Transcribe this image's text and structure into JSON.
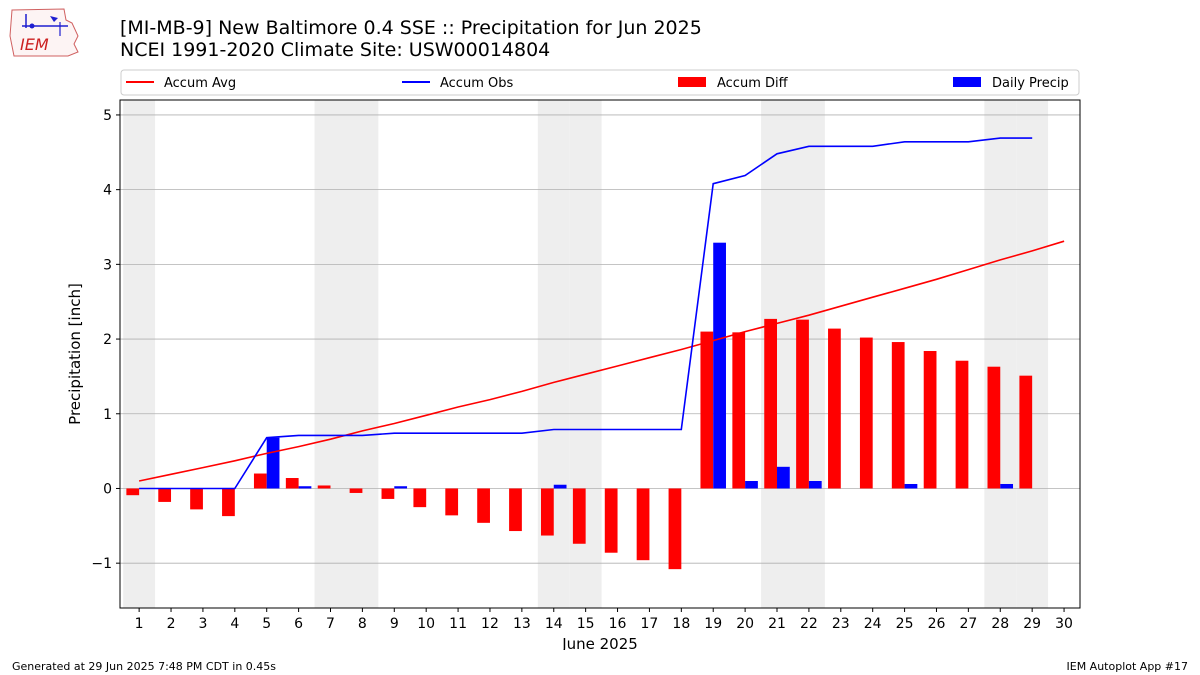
{
  "logo": {
    "text": "IEM"
  },
  "header": {
    "title": "[MI-MB-9] New Baltimore 0.4 SSE :: Precipitation for Jun 2025",
    "subtitle": "NCEI 1991-2020 Climate Site: USW00014804"
  },
  "footer": {
    "left": "Generated at 29 Jun 2025 7:48 PM CDT in 0.45s",
    "right": "IEM Autoplot App #17"
  },
  "colors": {
    "avg": "#ff0000",
    "obs": "#0000ff",
    "diff": "#ff0000",
    "daily": "#0000ff",
    "weekend": "#eeeeee",
    "grid": "#b0b0b0"
  },
  "chart_data": {
    "type": "bar",
    "xlabel": "June 2025",
    "ylabel": "Precipitation [inch]",
    "ylim": [
      -1.6,
      5.2
    ],
    "yticks": [
      -1,
      0,
      1,
      2,
      3,
      4,
      5
    ],
    "ytick_labels": [
      "−1",
      "0",
      "1",
      "2",
      "3",
      "4",
      "5"
    ],
    "grid": "horizontal",
    "days": [
      1,
      2,
      3,
      4,
      5,
      6,
      7,
      8,
      9,
      10,
      11,
      12,
      13,
      14,
      15,
      16,
      17,
      18,
      19,
      20,
      21,
      22,
      23,
      24,
      25,
      26,
      27,
      28,
      29,
      30
    ],
    "weekend_days": [
      1,
      7,
      8,
      14,
      15,
      21,
      22,
      28,
      29
    ],
    "legend": {
      "placement": "top, above plot",
      "entries": [
        "Accum Avg",
        "Accum Obs",
        "Accum Diff",
        "Daily Precip"
      ]
    },
    "series": [
      {
        "name": "Accum Avg",
        "kind": "line",
        "values": [
          0.1,
          0.19,
          0.28,
          0.37,
          0.47,
          0.56,
          0.66,
          0.77,
          0.87,
          0.98,
          1.09,
          1.19,
          1.3,
          1.42,
          1.53,
          1.64,
          1.75,
          1.86,
          1.98,
          2.1,
          2.21,
          2.32,
          2.44,
          2.56,
          2.68,
          2.8,
          2.93,
          3.06,
          3.18,
          3.31
        ]
      },
      {
        "name": "Accum Obs",
        "kind": "line",
        "values": [
          0.0,
          0.0,
          0.0,
          0.0,
          0.68,
          0.71,
          0.71,
          0.71,
          0.74,
          0.74,
          0.74,
          0.74,
          0.74,
          0.79,
          0.79,
          0.79,
          0.79,
          0.79,
          4.08,
          4.19,
          4.48,
          4.58,
          4.58,
          4.58,
          4.64,
          4.64,
          4.64,
          4.69,
          4.69
        ]
      },
      {
        "name": "Accum Diff",
        "kind": "bar",
        "values": [
          -0.09,
          -0.18,
          -0.28,
          -0.37,
          0.2,
          0.14,
          0.04,
          -0.06,
          -0.14,
          -0.25,
          -0.36,
          -0.46,
          -0.57,
          -0.63,
          -0.74,
          -0.86,
          -0.96,
          -1.08,
          2.1,
          2.09,
          2.27,
          2.26,
          2.14,
          2.02,
          1.96,
          1.84,
          1.71,
          1.63,
          1.51
        ]
      },
      {
        "name": "Daily Precip",
        "kind": "bar",
        "values": [
          0,
          0,
          0,
          0,
          0.68,
          0.03,
          0,
          0,
          0.03,
          0,
          0,
          0,
          0,
          0.05,
          0,
          0,
          0,
          0,
          3.29,
          0.1,
          0.29,
          0.1,
          0,
          0,
          0.06,
          0,
          0,
          0.06,
          0
        ]
      }
    ]
  }
}
